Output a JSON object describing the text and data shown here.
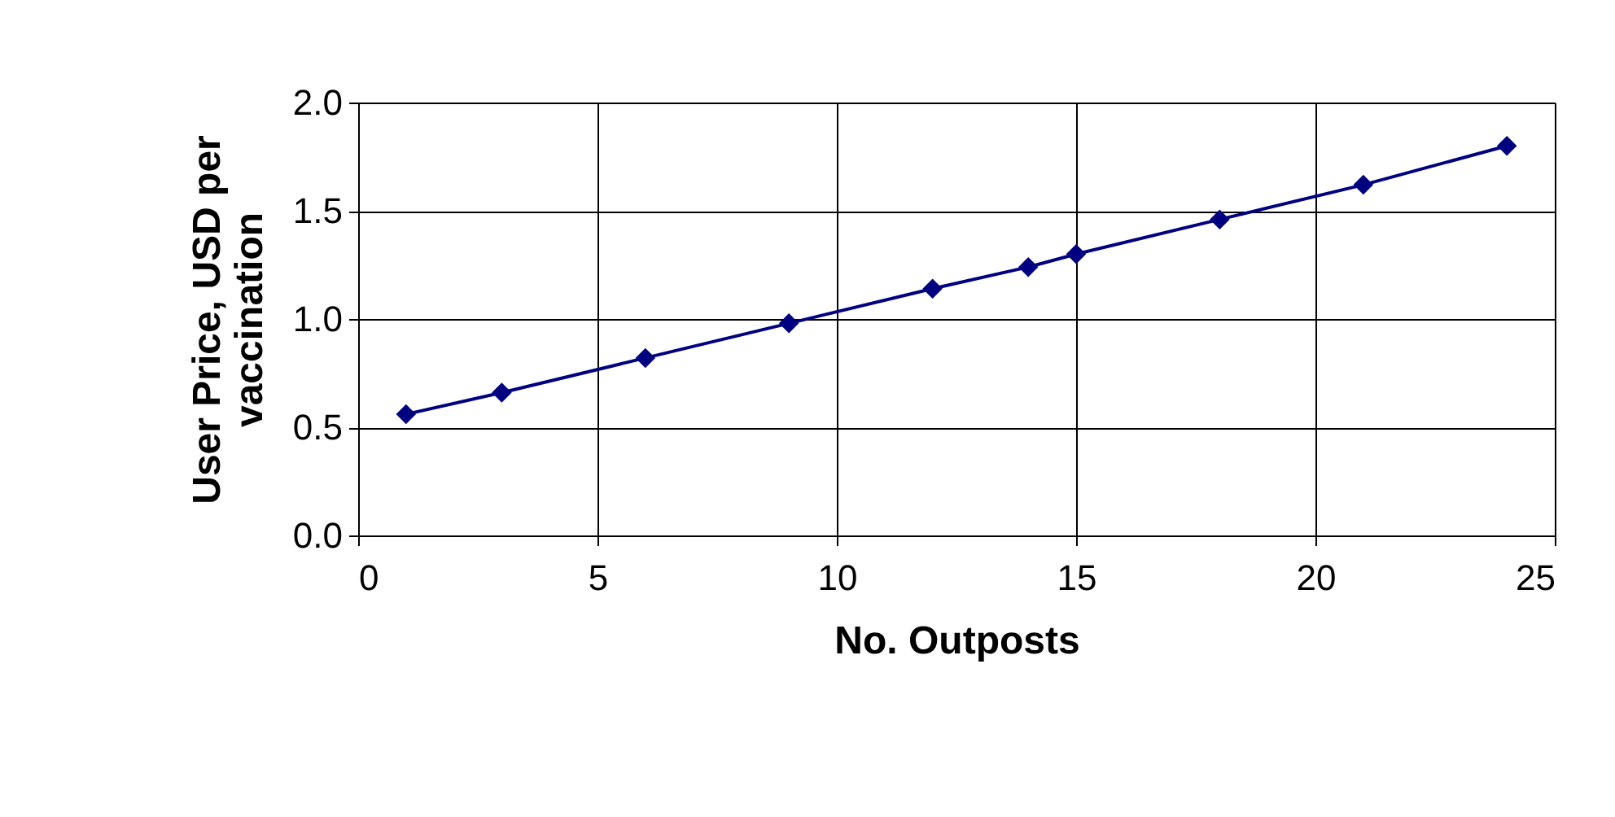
{
  "chart_data": {
    "type": "line",
    "xlabel": "No. Outposts",
    "ylabel": "User Price, USD per vaccination",
    "x": [
      1,
      3,
      6,
      9,
      12,
      14,
      15,
      18,
      21,
      24
    ],
    "series": [
      {
        "color": "#000080",
        "values": [
          0.56,
          0.66,
          0.82,
          0.98,
          1.14,
          1.24,
          1.3,
          1.46,
          1.62,
          1.8
        ]
      }
    ],
    "xlim": [
      0,
      25
    ],
    "xticks": [
      0,
      5,
      10,
      15,
      20,
      25
    ],
    "ylim": [
      0,
      2
    ],
    "yticks": [
      {
        "value": 0,
        "label": "0.0"
      },
      {
        "value": 0.5,
        "label": "0.5"
      },
      {
        "value": 1,
        "label": "1.0"
      },
      {
        "value": 1.5,
        "label": "1.5"
      },
      {
        "value": 2,
        "label": "2.0"
      }
    ],
    "grid": true,
    "marker": "diamond",
    "line_style": "solid"
  }
}
